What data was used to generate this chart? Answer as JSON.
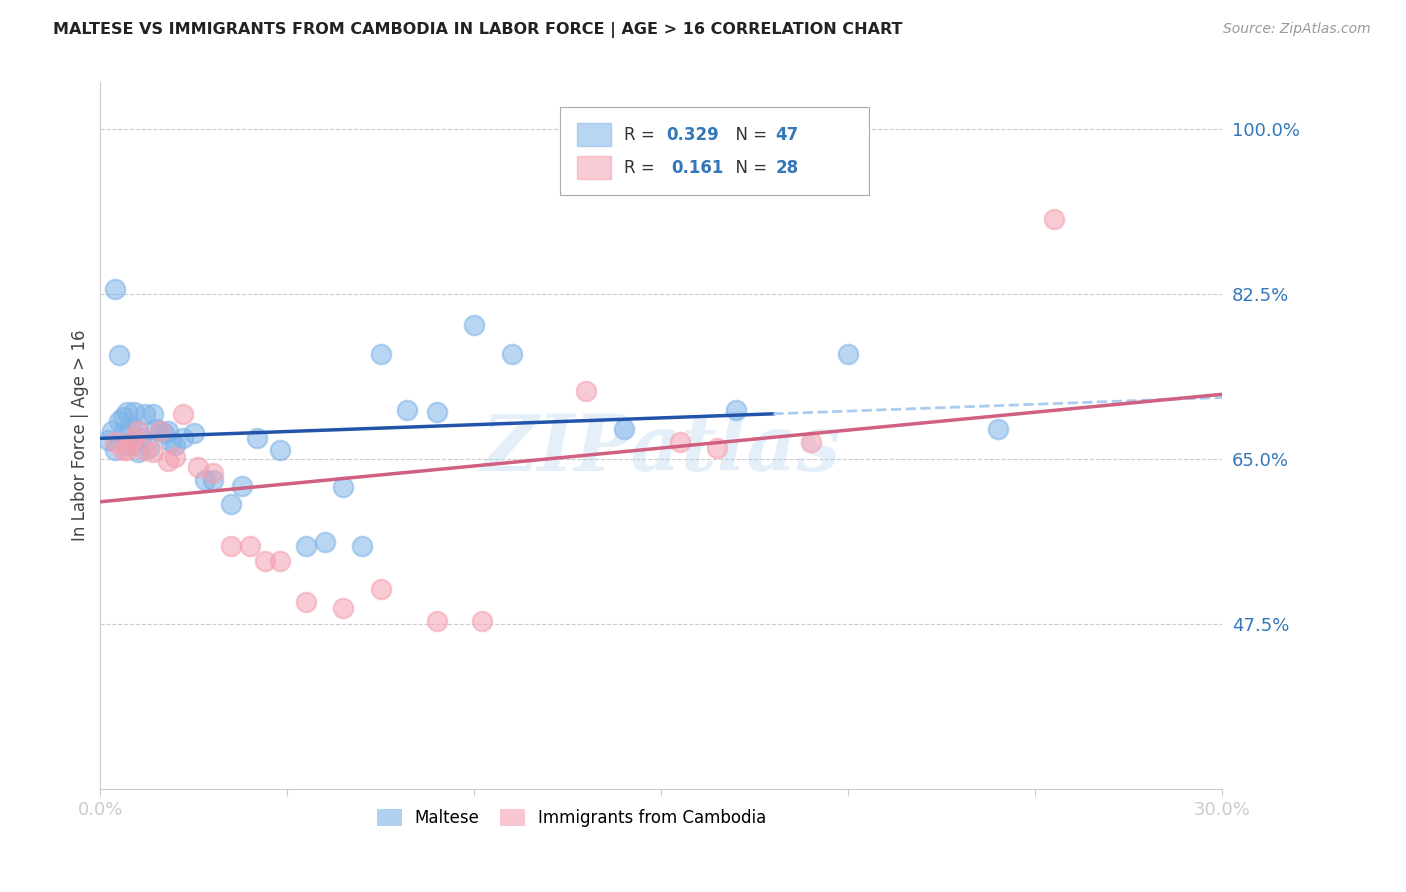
{
  "title": "MALTESE VS IMMIGRANTS FROM CAMBODIA IN LABOR FORCE | AGE > 16 CORRELATION CHART",
  "source": "Source: ZipAtlas.com",
  "ylabel": "In Labor Force | Age > 16",
  "xlim": [
    0.0,
    0.3
  ],
  "ylim": [
    0.3,
    1.05
  ],
  "yticks": [
    0.475,
    0.65,
    0.825,
    1.0
  ],
  "ytick_labels": [
    "47.5%",
    "65.0%",
    "82.5%",
    "100.0%"
  ],
  "xticks": [
    0.0,
    0.05,
    0.1,
    0.15,
    0.2,
    0.25,
    0.3
  ],
  "xtick_labels": [
    "0.0%",
    "",
    "",
    "",
    "",
    "",
    "30.0%"
  ],
  "maltese_R": 0.329,
  "maltese_N": 47,
  "cambodia_R": 0.161,
  "cambodia_N": 28,
  "maltese_color": "#7EB3E8",
  "cambodia_color": "#F4A0B0",
  "line_blue": "#2255AA",
  "line_pink": "#D06080",
  "line_dash_color": "#AACCEE",
  "watermark": "ZIPatlas",
  "maltese_x": [
    0.002,
    0.003,
    0.004,
    0.004,
    0.005,
    0.005,
    0.006,
    0.006,
    0.007,
    0.007,
    0.008,
    0.008,
    0.009,
    0.009,
    0.01,
    0.01,
    0.011,
    0.012,
    0.013,
    0.014,
    0.015,
    0.016,
    0.017,
    0.018,
    0.019,
    0.02,
    0.022,
    0.025,
    0.028,
    0.03,
    0.035,
    0.038,
    0.042,
    0.048,
    0.055,
    0.06,
    0.065,
    0.07,
    0.075,
    0.082,
    0.09,
    0.1,
    0.11,
    0.14,
    0.17,
    0.2,
    0.24
  ],
  "maltese_y": [
    0.67,
    0.68,
    0.66,
    0.83,
    0.69,
    0.76,
    0.678,
    0.695,
    0.7,
    0.665,
    0.685,
    0.665,
    0.668,
    0.7,
    0.68,
    0.658,
    0.672,
    0.698,
    0.662,
    0.698,
    0.682,
    0.68,
    0.678,
    0.68,
    0.668,
    0.665,
    0.672,
    0.678,
    0.628,
    0.628,
    0.602,
    0.622,
    0.672,
    0.66,
    0.558,
    0.562,
    0.62,
    0.558,
    0.762,
    0.702,
    0.7,
    0.792,
    0.762,
    0.682,
    0.702,
    0.762,
    0.682
  ],
  "cambodia_x": [
    0.004,
    0.006,
    0.007,
    0.008,
    0.009,
    0.01,
    0.012,
    0.014,
    0.016,
    0.018,
    0.02,
    0.022,
    0.026,
    0.03,
    0.035,
    0.04,
    0.044,
    0.048,
    0.055,
    0.065,
    0.075,
    0.09,
    0.102,
    0.13,
    0.155,
    0.165,
    0.19,
    0.255
  ],
  "cambodia_y": [
    0.668,
    0.66,
    0.66,
    0.665,
    0.672,
    0.68,
    0.66,
    0.658,
    0.68,
    0.648,
    0.652,
    0.698,
    0.642,
    0.635,
    0.558,
    0.558,
    0.542,
    0.542,
    0.498,
    0.492,
    0.512,
    0.478,
    0.478,
    0.722,
    0.668,
    0.662,
    0.668,
    0.905
  ]
}
